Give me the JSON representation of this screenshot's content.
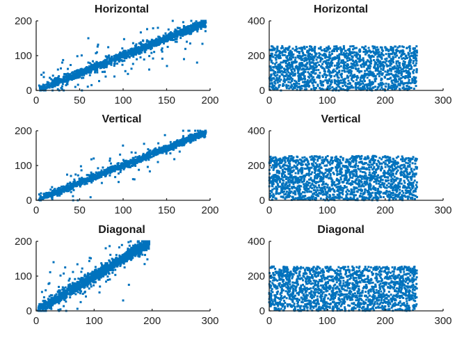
{
  "chart_data": [
    {
      "type": "scatter",
      "title": "Horizontal",
      "xlim": [
        0,
        200
      ],
      "ylim": [
        0,
        200
      ],
      "xticks": [
        0,
        50,
        100,
        150,
        200
      ],
      "yticks": [
        0,
        100,
        200
      ],
      "marker_color": "#0072BD",
      "grid": false,
      "series": [
        {
          "description": "dense points along y = x from about 5 to 195 with scattered outliers",
          "points": [
            [
              5,
              5
            ],
            [
              20,
              22
            ],
            [
              35,
              30
            ],
            [
              50,
              55
            ],
            [
              60,
              80
            ],
            [
              70,
              65
            ],
            [
              80,
              82
            ],
            [
              100,
              98
            ],
            [
              110,
              120
            ],
            [
              120,
              95
            ],
            [
              130,
              130
            ],
            [
              150,
              148
            ],
            [
              160,
              175
            ],
            [
              175,
              170
            ],
            [
              190,
              192
            ],
            [
              195,
              195
            ],
            [
              30,
              80
            ],
            [
              25,
              60
            ],
            [
              45,
              10
            ],
            [
              60,
              150
            ],
            [
              90,
              40
            ],
            [
              130,
              60
            ],
            [
              170,
              90
            ],
            [
              185,
              80
            ],
            [
              140,
              180
            ]
          ]
        }
      ]
    },
    {
      "type": "scatter",
      "title": "Horizontal",
      "xlim": [
        0,
        300
      ],
      "ylim": [
        0,
        400
      ],
      "xticks": [
        0,
        100,
        200,
        300
      ],
      "yticks": [
        0,
        200,
        400
      ],
      "marker_color": "#0072BD",
      "grid": false,
      "series": [
        {
          "description": "uniformly distributed points, x 0 to 255, y 0 to 255",
          "points": [
            [
              10,
              240
            ],
            [
              50,
              120
            ],
            [
              90,
              30
            ],
            [
              130,
              200
            ],
            [
              170,
              90
            ],
            [
              210,
              250
            ],
            [
              250,
              10
            ],
            [
              30,
              60
            ],
            [
              120,
              150
            ],
            [
              200,
              180
            ]
          ]
        }
      ]
    },
    {
      "type": "scatter",
      "title": "Vertical",
      "xlim": [
        0,
        200
      ],
      "ylim": [
        0,
        200
      ],
      "xticks": [
        0,
        50,
        100,
        150,
        200
      ],
      "yticks": [
        0,
        100,
        200
      ],
      "marker_color": "#0072BD",
      "grid": false,
      "series": [
        {
          "description": "tight band along y = x from about 5 to 195",
          "points": [
            [
              5,
              5
            ],
            [
              25,
              28
            ],
            [
              50,
              48
            ],
            [
              75,
              80
            ],
            [
              100,
              100
            ],
            [
              125,
              120
            ],
            [
              150,
              155
            ],
            [
              175,
              172
            ],
            [
              195,
              195
            ],
            [
              40,
              70
            ],
            [
              85,
              120
            ],
            [
              140,
              110
            ],
            [
              165,
              140
            ]
          ]
        }
      ]
    },
    {
      "type": "scatter",
      "title": "Vertical",
      "xlim": [
        0,
        300
      ],
      "ylim": [
        0,
        400
      ],
      "xticks": [
        0,
        100,
        200,
        300
      ],
      "yticks": [
        0,
        200,
        400
      ],
      "marker_color": "#0072BD",
      "grid": false,
      "series": [
        {
          "description": "uniformly distributed points, x 0 to 255, y 0 to 255",
          "points": [
            [
              15,
              230
            ],
            [
              60,
              110
            ],
            [
              100,
              40
            ],
            [
              140,
              210
            ],
            [
              180,
              70
            ],
            [
              220,
              245
            ],
            [
              245,
              15
            ],
            [
              35,
              90
            ],
            [
              125,
              160
            ],
            [
              205,
              130
            ]
          ]
        }
      ]
    },
    {
      "type": "scatter",
      "title": "Diagonal",
      "xlim": [
        0,
        300
      ],
      "ylim": [
        0,
        200
      ],
      "xticks": [
        0,
        100,
        200,
        300
      ],
      "yticks": [
        0,
        100,
        200
      ],
      "marker_color": "#0072BD",
      "grid": false,
      "series": [
        {
          "description": "band along y = x from about 5 to 195 with scattered outliers",
          "points": [
            [
              5,
              5
            ],
            [
              30,
              30
            ],
            [
              60,
              62
            ],
            [
              90,
              88
            ],
            [
              120,
              125
            ],
            [
              150,
              148
            ],
            [
              180,
              182
            ],
            [
              195,
              195
            ],
            [
              30,
              140
            ],
            [
              50,
              125
            ],
            [
              70,
              60
            ],
            [
              110,
              70
            ],
            [
              150,
              30
            ],
            [
              160,
              75
            ],
            [
              120,
              180
            ]
          ]
        }
      ]
    },
    {
      "type": "scatter",
      "title": "Diagonal",
      "xlim": [
        0,
        300
      ],
      "ylim": [
        0,
        400
      ],
      "xticks": [
        0,
        100,
        200,
        300
      ],
      "yticks": [
        0,
        200,
        400
      ],
      "marker_color": "#0072BD",
      "grid": false,
      "series": [
        {
          "description": "uniformly distributed points, x 0 to 255, y 0 to 255",
          "points": [
            [
              20,
              220
            ],
            [
              70,
              100
            ],
            [
              110,
              50
            ],
            [
              150,
              190
            ],
            [
              190,
              80
            ],
            [
              230,
              240
            ],
            [
              240,
              20
            ],
            [
              45,
              70
            ],
            [
              135,
              170
            ],
            [
              210,
              140
            ]
          ]
        }
      ]
    }
  ]
}
